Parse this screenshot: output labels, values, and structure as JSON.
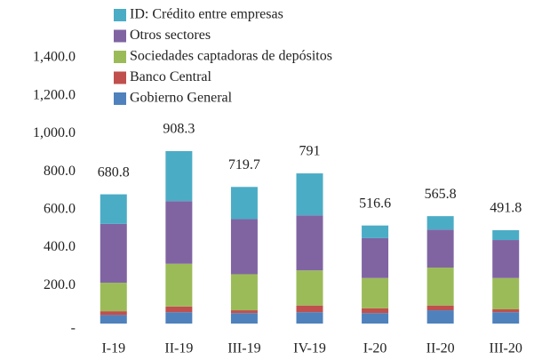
{
  "chart_data": {
    "type": "stacked_bar",
    "categories": [
      "I-19",
      "II-19",
      "III-19",
      "IV-19",
      "I-20",
      "II-20",
      "III-20"
    ],
    "series": [
      {
        "name": "Gobierno General",
        "color": "#4f81bd",
        "values": [
          45,
          60,
          55,
          60,
          55,
          70,
          60
        ]
      },
      {
        "name": "Banco Central",
        "color": "#c0504d",
        "values": [
          20,
          30,
          15,
          35,
          25,
          25,
          15
        ]
      },
      {
        "name": "Sociedades captadoras de depósitos",
        "color": "#9bbb59",
        "values": [
          150,
          225,
          190,
          185,
          160,
          200,
          165
        ]
      },
      {
        "name": "Otros sectores",
        "color": "#8064a2",
        "values": [
          310,
          330,
          290,
          290,
          210,
          200,
          200
        ]
      },
      {
        "name": "ID: Crédito entre empresas",
        "color": "#4bacc6",
        "values": [
          155.8,
          263.3,
          169.7,
          221,
          66.6,
          70.8,
          51.8
        ]
      }
    ],
    "totals": [
      680.8,
      908.3,
      719.7,
      791.0,
      516.6,
      565.8,
      491.8
    ],
    "ylim": [
      0,
      1400
    ],
    "yticks": [
      {
        "value": 0,
        "label": "-"
      },
      {
        "value": 200,
        "label": "200.0"
      },
      {
        "value": 400,
        "label": "400.0"
      },
      {
        "value": 600,
        "label": "600.0"
      },
      {
        "value": 800,
        "label": "800.0"
      },
      {
        "value": 1000,
        "label": "1,000.0"
      },
      {
        "value": 1200,
        "label": "1,200.0"
      },
      {
        "value": 1400,
        "label": "1,400.0"
      }
    ],
    "grid": false
  }
}
